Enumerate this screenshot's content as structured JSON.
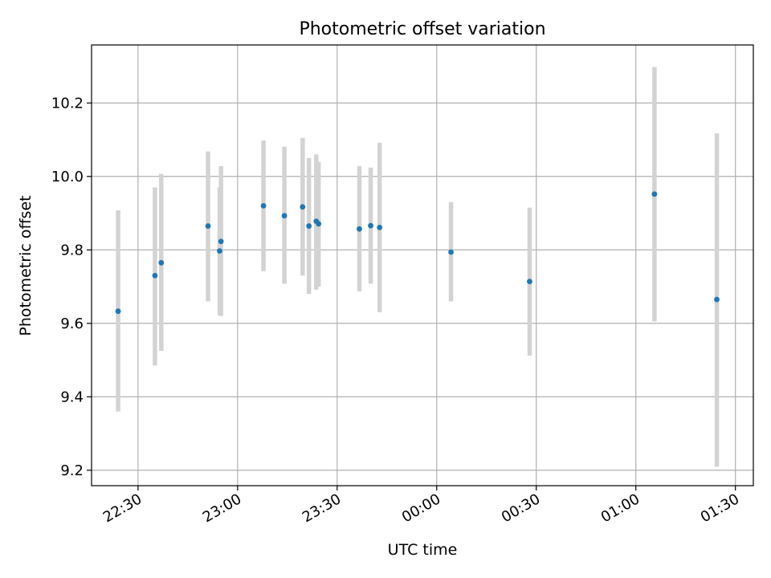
{
  "chart_data": {
    "type": "scatter",
    "title": "Photometric offset variation",
    "xlabel": "UTC time",
    "ylabel": "Photometric offset",
    "grid": true,
    "x_unit": "minutes since 22:00 UTC",
    "xlim": [
      16.0,
      215.4
    ],
    "ylim": [
      9.158,
      10.358
    ],
    "x_ticks": [
      {
        "value": 30,
        "label": "22:30"
      },
      {
        "value": 60,
        "label": "23:00"
      },
      {
        "value": 90,
        "label": "23:30"
      },
      {
        "value": 120,
        "label": "00:00"
      },
      {
        "value": 150,
        "label": "00:30"
      },
      {
        "value": 180,
        "label": "01:00"
      },
      {
        "value": 210,
        "label": "01:30"
      }
    ],
    "y_ticks": [
      {
        "value": 9.2,
        "label": "9.2"
      },
      {
        "value": 9.4,
        "label": "9.4"
      },
      {
        "value": 9.6,
        "label": "9.6"
      },
      {
        "value": 9.8,
        "label": "9.8"
      },
      {
        "value": 10.0,
        "label": "10.0"
      },
      {
        "value": 10.2,
        "label": "10.2"
      }
    ],
    "colors": {
      "point": "#1f77b4",
      "errorbar": "#d3d3d3",
      "grid": "#b0b0b0",
      "axes": "#000000"
    },
    "points": [
      {
        "x": 24.0,
        "y": 9.633,
        "lo": 9.36,
        "hi": 9.908
      },
      {
        "x": 35.1,
        "y": 9.73,
        "lo": 9.485,
        "hi": 9.97
      },
      {
        "x": 37.0,
        "y": 9.765,
        "lo": 9.525,
        "hi": 10.007
      },
      {
        "x": 51.1,
        "y": 9.865,
        "lo": 9.66,
        "hi": 10.068
      },
      {
        "x": 54.6,
        "y": 9.797,
        "lo": 9.622,
        "hi": 9.97
      },
      {
        "x": 55.0,
        "y": 9.823,
        "lo": 9.62,
        "hi": 10.028
      },
      {
        "x": 67.8,
        "y": 9.92,
        "lo": 9.742,
        "hi": 10.098
      },
      {
        "x": 74.1,
        "y": 9.893,
        "lo": 9.708,
        "hi": 10.081
      },
      {
        "x": 79.6,
        "y": 9.917,
        "lo": 9.73,
        "hi": 10.105
      },
      {
        "x": 81.5,
        "y": 9.865,
        "lo": 9.68,
        "hi": 10.05
      },
      {
        "x": 83.7,
        "y": 9.878,
        "lo": 9.692,
        "hi": 10.06
      },
      {
        "x": 84.4,
        "y": 9.871,
        "lo": 9.7,
        "hi": 10.04
      },
      {
        "x": 96.7,
        "y": 9.857,
        "lo": 9.687,
        "hi": 10.028
      },
      {
        "x": 100.1,
        "y": 9.866,
        "lo": 9.708,
        "hi": 10.024
      },
      {
        "x": 102.8,
        "y": 9.861,
        "lo": 9.63,
        "hi": 10.092
      },
      {
        "x": 124.3,
        "y": 9.794,
        "lo": 9.66,
        "hi": 9.93
      },
      {
        "x": 148.0,
        "y": 9.714,
        "lo": 9.512,
        "hi": 9.915
      },
      {
        "x": 185.6,
        "y": 9.952,
        "lo": 9.605,
        "hi": 10.298
      },
      {
        "x": 204.4,
        "y": 9.665,
        "lo": 9.21,
        "hi": 10.117
      }
    ]
  }
}
